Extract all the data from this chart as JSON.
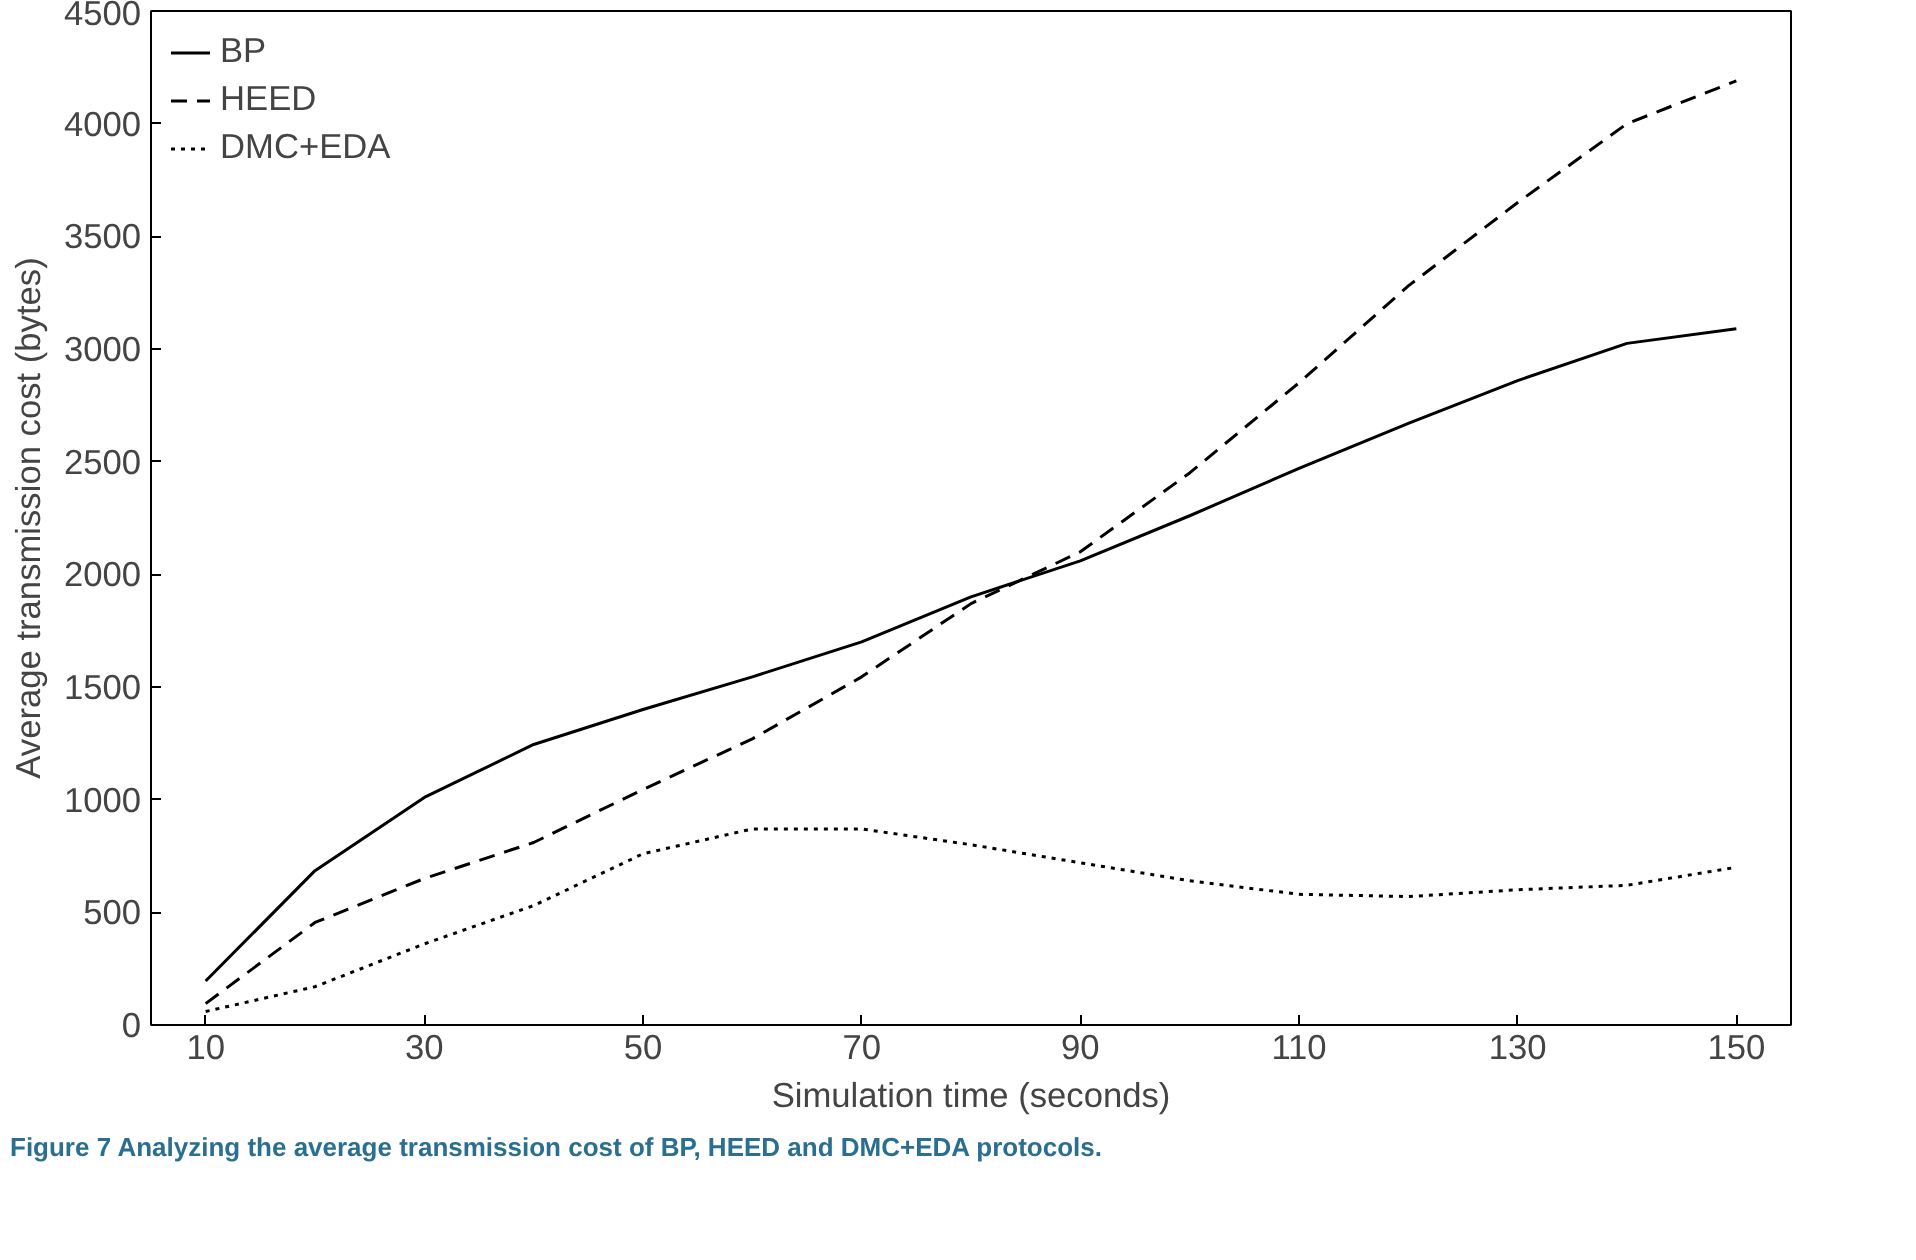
{
  "chart_data": {
    "type": "line",
    "xlabel": "Simulation time (seconds)",
    "ylabel": "Average transmission cost (bytes)",
    "x": [
      10,
      20,
      30,
      40,
      50,
      60,
      70,
      80,
      90,
      100,
      110,
      120,
      130,
      140,
      150
    ],
    "xlim": [
      5,
      155
    ],
    "xticks": [
      10,
      30,
      50,
      70,
      90,
      110,
      130,
      150
    ],
    "ylim": [
      0,
      4500
    ],
    "yticks": [
      0,
      500,
      1000,
      1500,
      2000,
      2500,
      3000,
      3500,
      4000,
      4500
    ],
    "grid": false,
    "legend": "top left",
    "marker": "none",
    "series": [
      {
        "name": "BP",
        "color": "#000000",
        "line_style": "solid",
        "values": [
          195,
          685,
          1010,
          1245,
          1400,
          1545,
          1700,
          1900,
          2060,
          2260,
          2470,
          2670,
          2860,
          3025,
          3090
        ]
      },
      {
        "name": "HEED",
        "color": "#000000",
        "line_style": "dashed",
        "values": [
          95,
          455,
          650,
          810,
          1045,
          1270,
          1545,
          1870,
          2100,
          2450,
          2850,
          3280,
          3650,
          4000,
          4190
        ]
      },
      {
        "name": "DMC+EDA",
        "color": "#000000",
        "line_style": "dotted",
        "values": [
          60,
          170,
          360,
          530,
          760,
          870,
          870,
          800,
          720,
          640,
          580,
          570,
          600,
          620,
          700
        ]
      }
    ],
    "annotations": [
      "Figure 7 Analyzing the average transmission cost of BP, HEED and DMC+EDA protocols."
    ]
  }
}
